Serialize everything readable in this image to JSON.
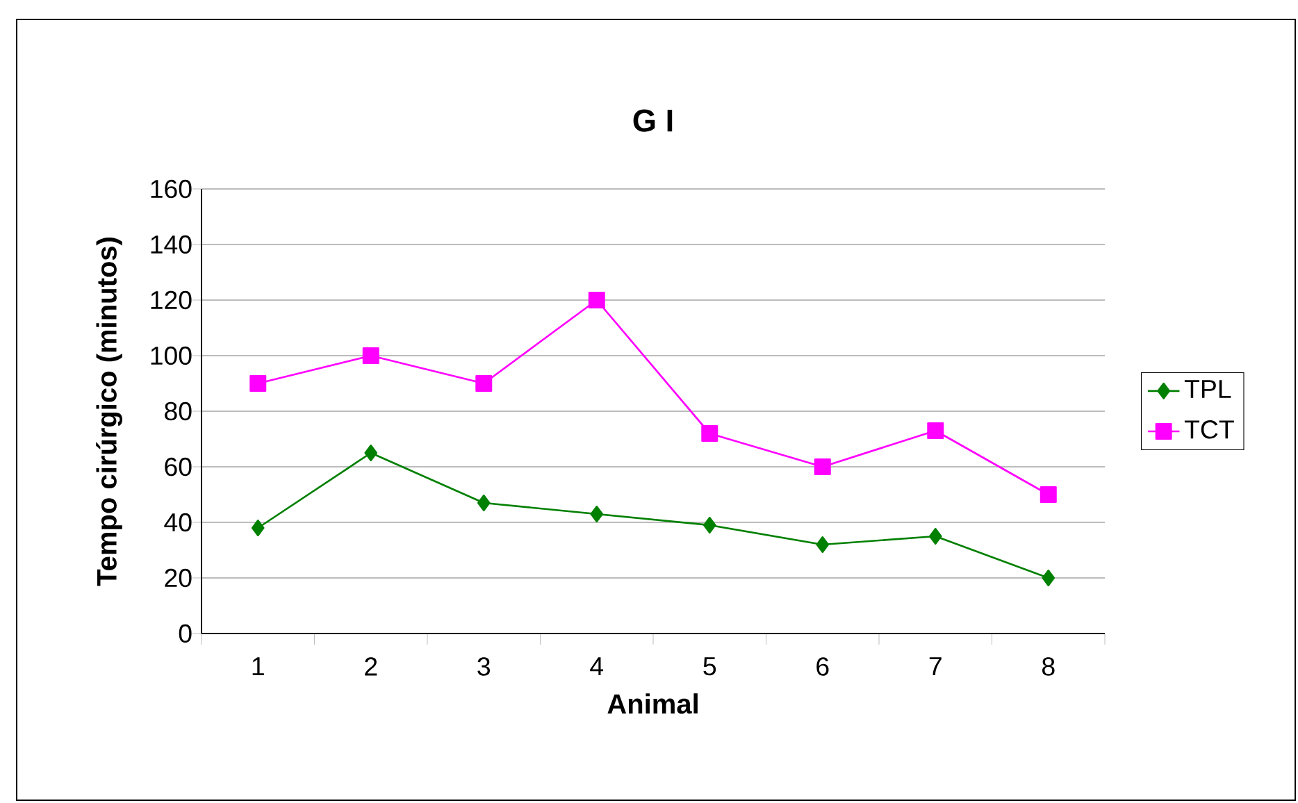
{
  "chart_data": {
    "type": "line",
    "title": "G I",
    "xlabel": "Animal",
    "ylabel": "Tempo cirúrgico (minutos)",
    "categories": [
      "1",
      "2",
      "3",
      "4",
      "5",
      "6",
      "7",
      "8"
    ],
    "series": [
      {
        "name": "TPL",
        "color": "#008000",
        "marker": "diamond",
        "values": [
          38,
          65,
          47,
          43,
          39,
          32,
          35,
          20
        ]
      },
      {
        "name": "TCT",
        "color": "#ff00ff",
        "marker": "square",
        "values": [
          90,
          100,
          90,
          120,
          72,
          60,
          73,
          50
        ]
      }
    ],
    "ylim": [
      0,
      160
    ],
    "yticks": [
      0,
      20,
      40,
      60,
      80,
      100,
      120,
      140,
      160
    ],
    "grid": "y",
    "legend": "right",
    "line_style": "solid"
  }
}
